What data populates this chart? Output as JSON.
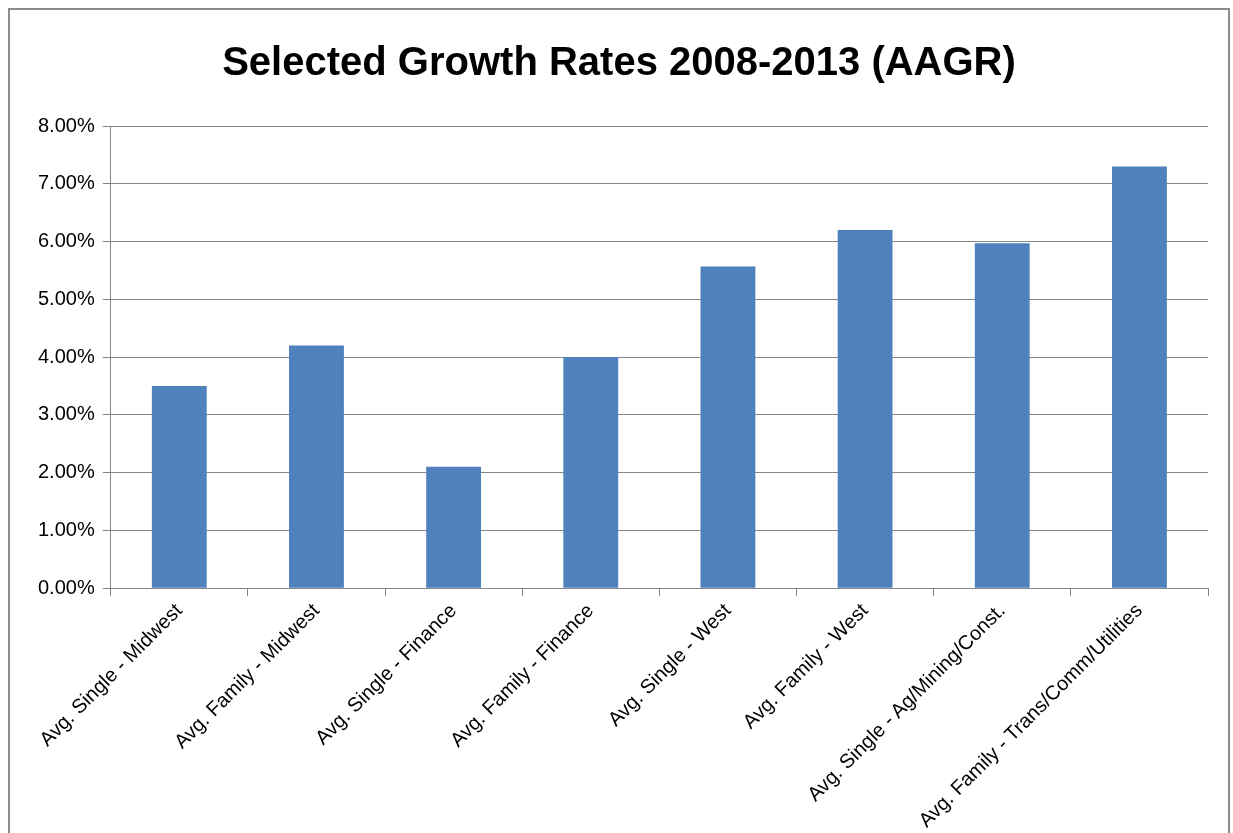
{
  "chart_data": {
    "type": "bar",
    "title": "Selected Growth Rates 2008-2013 (AAGR)",
    "categories": [
      "Avg. Single - Midwest",
      "Avg. Family - Midwest",
      "Avg. Single - Finance",
      "Avg. Family - Finance",
      "Avg. Single - West",
      "Avg. Family - West",
      "Avg. Single - Ag/Mining/Const.",
      "Avg. Family - Trans/Comm/Utilities"
    ],
    "values": [
      3.5,
      4.2,
      2.1,
      4.0,
      5.57,
      6.2,
      5.97,
      7.3
    ],
    "color": "#4f81bd",
    "ylim": [
      0,
      8
    ],
    "yticks": [
      {
        "value": 0,
        "label": "0.00%"
      },
      {
        "value": 1,
        "label": "1.00%"
      },
      {
        "value": 2,
        "label": "2.00%"
      },
      {
        "value": 3,
        "label": "3.00%"
      },
      {
        "value": 4,
        "label": "4.00%"
      },
      {
        "value": 5,
        "label": "5.00%"
      },
      {
        "value": 6,
        "label": "6.00%"
      },
      {
        "value": 7,
        "label": "7.00%"
      },
      {
        "value": 8,
        "label": "8.00%"
      }
    ],
    "grid": "y",
    "legend": false
  }
}
